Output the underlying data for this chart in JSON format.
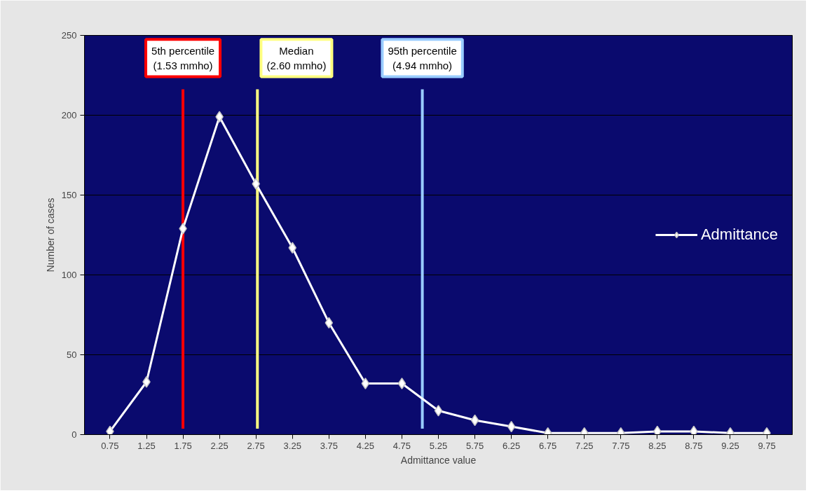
{
  "chart_data": {
    "type": "line",
    "xlabel": "Admittance value",
    "ylabel": "Number of cases",
    "x": [
      0.75,
      1.25,
      1.75,
      2.25,
      2.75,
      3.25,
      3.75,
      4.25,
      4.75,
      5.25,
      5.75,
      6.25,
      6.75,
      7.25,
      7.75,
      8.25,
      8.75,
      9.25,
      9.75
    ],
    "series": [
      {
        "name": "Admittance",
        "color": "#ffffff",
        "values": [
          2,
          33,
          129,
          199,
          157,
          117,
          70,
          32,
          32,
          15,
          9,
          5,
          1,
          1,
          1,
          2,
          2,
          1,
          1
        ]
      }
    ],
    "xlim": [
      0.4,
      10.1
    ],
    "xticks": [
      0.75,
      1.25,
      1.75,
      2.25,
      2.75,
      3.25,
      3.75,
      4.25,
      4.75,
      5.25,
      5.75,
      6.25,
      6.75,
      7.25,
      7.75,
      8.25,
      8.75,
      9.25,
      9.75
    ],
    "ylim": [
      0,
      250
    ],
    "yticks": [
      0,
      50,
      100,
      150,
      200,
      250
    ],
    "ref_lines": [
      {
        "axis": "x",
        "value": 1.75,
        "label": "5th percentile\n(1.53 mmho)",
        "color": "#ff0000"
      },
      {
        "axis": "x",
        "value": 2.77,
        "label": "Median\n(2.60 mmho)",
        "color": "#ffff80"
      },
      {
        "axis": "x",
        "value": 5.03,
        "label": "95th percentile\n(4.94 mmho)",
        "color": "#99ccff"
      }
    ],
    "grid": "y",
    "legend": "right",
    "marker": "diamond",
    "line_style": "solid"
  }
}
